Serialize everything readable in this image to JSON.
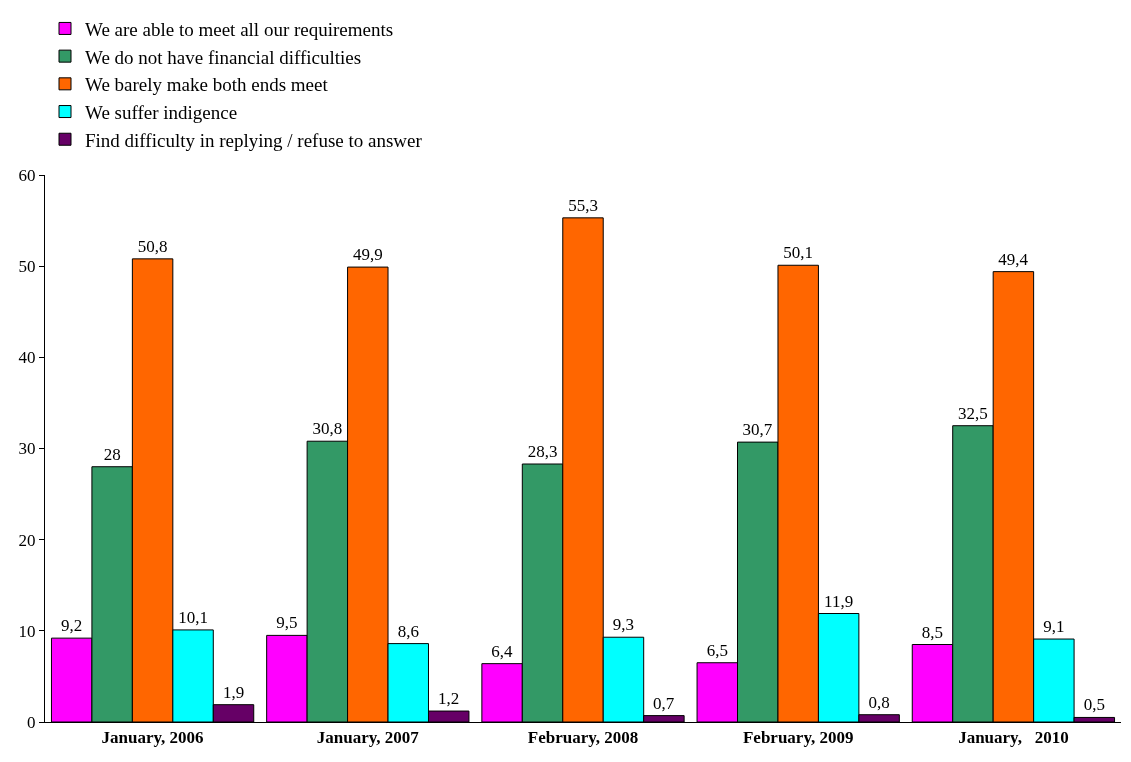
{
  "chart_data": {
    "type": "bar",
    "categories": [
      "January, 2006",
      "January, 2007",
      "February, 2008",
      "February, 2009",
      "January,   2010"
    ],
    "series": [
      {
        "name": "We are able to meet all our requirements",
        "color": "#ff00ff",
        "values": [
          9.2,
          9.5,
          6.4,
          6.5,
          8.5
        ],
        "value_labels": [
          "9,2",
          "9,5",
          "6,4",
          "6,5",
          "8,5"
        ]
      },
      {
        "name": "We do not have financial difficulties",
        "color": "#339966",
        "values": [
          28,
          30.8,
          28.3,
          30.7,
          32.5
        ],
        "value_labels": [
          "28",
          "30,8",
          "28,3",
          "30,7",
          "32,5"
        ]
      },
      {
        "name": "We barely make both ends meet",
        "color": "#ff6600",
        "values": [
          50.8,
          49.9,
          55.3,
          50.1,
          49.4
        ],
        "value_labels": [
          "50,8",
          "49,9",
          "55,3",
          "50,1",
          "49,4"
        ]
      },
      {
        "name": "We suffer indigence",
        "color": "#00ffff",
        "values": [
          10.1,
          8.6,
          9.3,
          11.9,
          9.1
        ],
        "value_labels": [
          "10,1",
          "8,6",
          "9,3",
          "11,9",
          "9,1"
        ]
      },
      {
        "name": "Find difficulty in replying / refuse to answer",
        "color": "#660066",
        "values": [
          1.9,
          1.2,
          0.7,
          0.8,
          0.5
        ],
        "value_labels": [
          "1,9",
          "1,2",
          "0,7",
          "0,8",
          "0,5"
        ]
      }
    ],
    "ylim": [
      0,
      60
    ],
    "yticks": [
      0,
      10,
      20,
      30,
      40,
      50,
      60
    ],
    "grid": false,
    "legend": "top"
  }
}
